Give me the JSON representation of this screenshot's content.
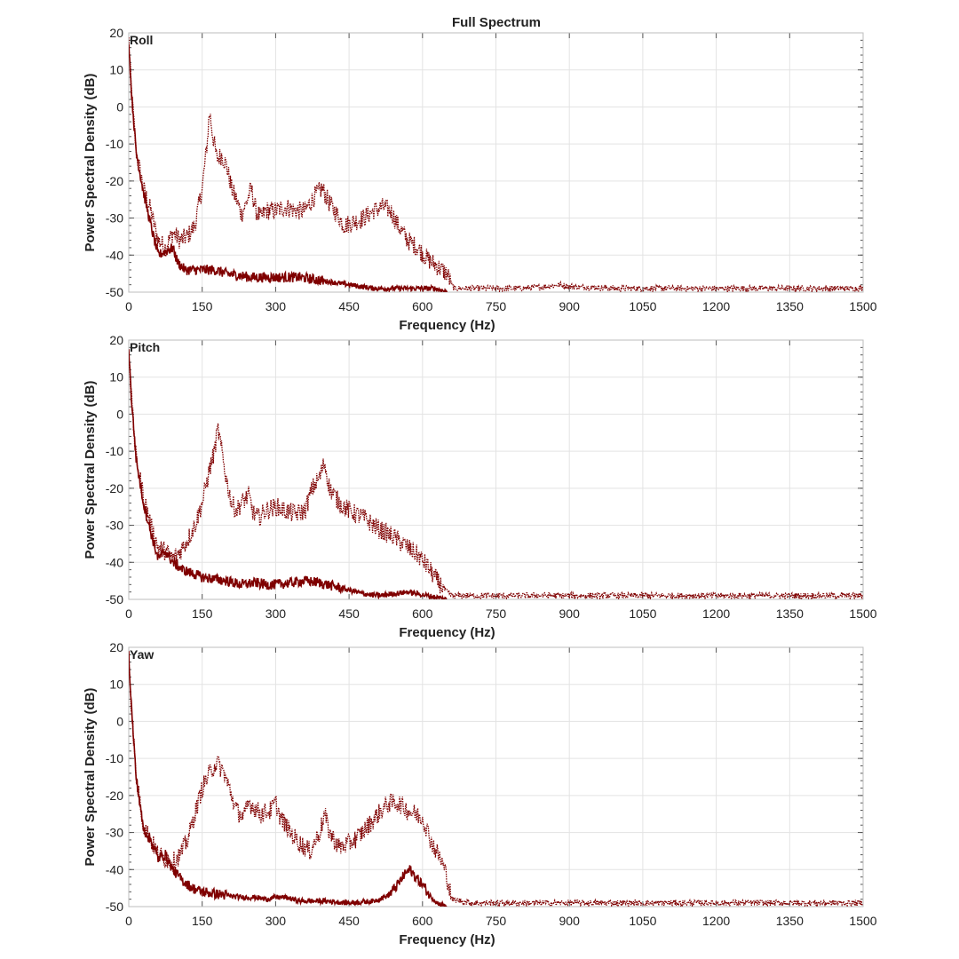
{
  "figure": {
    "title": "Full Spectrum"
  },
  "style": {
    "line_color": "#7f0000",
    "grid": true
  },
  "chart_data": [
    {
      "type": "line",
      "panel_label": "Roll",
      "xlabel": "Frequency (Hz)",
      "ylabel": "Power Spectral Density (dB)",
      "xlim": [
        0,
        1500
      ],
      "ylim": [
        -50,
        20
      ],
      "xticks": [
        "0",
        "150",
        "300",
        "450",
        "600",
        "750",
        "900",
        "1050",
        "1200",
        "1350",
        "1500"
      ],
      "yticks": [
        "20",
        "10",
        "0",
        "-10",
        "-20",
        "-30",
        "-40",
        "-50"
      ],
      "series": [
        {
          "style": "dotted",
          "x": [
            0,
            5,
            15,
            30,
            45,
            60,
            75,
            90,
            105,
            120,
            135,
            150,
            160,
            165,
            172,
            180,
            190,
            200,
            210,
            220,
            230,
            240,
            250,
            260,
            270,
            280,
            300,
            320,
            340,
            360,
            380,
            395,
            410,
            425,
            440,
            460,
            480,
            500,
            520,
            535,
            550,
            570,
            590,
            610,
            630,
            650,
            660,
            665,
            700,
            800,
            850,
            880,
            900,
            1000,
            1100,
            1200,
            1300,
            1400,
            1500
          ],
          "y": [
            18,
            5,
            -12,
            -22,
            -28,
            -36,
            -38,
            -34,
            -36,
            -35,
            -32,
            -22,
            -10,
            -1,
            -8,
            -14,
            -13,
            -16,
            -22,
            -25,
            -29,
            -26,
            -22,
            -28,
            -30,
            -28,
            -28,
            -27,
            -28,
            -28,
            -24,
            -22,
            -26,
            -29,
            -32,
            -31,
            -30,
            -28,
            -27,
            -28,
            -32,
            -36,
            -38,
            -41,
            -43,
            -45,
            -48,
            -49,
            -49,
            -49,
            -48.5,
            -48,
            -48.5,
            -49,
            -49,
            -49,
            -49,
            -49,
            -49
          ]
        },
        {
          "style": "solid",
          "x": [
            0,
            5,
            15,
            30,
            45,
            60,
            75,
            90,
            100,
            115,
            130,
            150,
            175,
            200,
            250,
            300,
            350,
            400,
            450,
            500,
            550,
            600,
            625,
            640,
            650
          ],
          "y": [
            18,
            5,
            -12,
            -23,
            -32,
            -40,
            -39,
            -38,
            -42,
            -44,
            -44,
            -44,
            -44,
            -45,
            -46,
            -46,
            -46,
            -47,
            -48,
            -49,
            -49,
            -49,
            -49,
            -49.5,
            -50
          ]
        }
      ]
    },
    {
      "type": "line",
      "panel_label": "Pitch",
      "xlabel": "Frequency (Hz)",
      "ylabel": "Power Spectral Density (dB)",
      "xlim": [
        0,
        1500
      ],
      "ylim": [
        -50,
        20
      ],
      "xticks": [
        "0",
        "150",
        "300",
        "450",
        "600",
        "750",
        "900",
        "1050",
        "1200",
        "1350",
        "1500"
      ],
      "yticks": [
        "20",
        "10",
        "0",
        "-10",
        "-20",
        "-30",
        "-40",
        "-50"
      ],
      "series": [
        {
          "style": "dotted",
          "x": [
            0,
            5,
            15,
            30,
            45,
            60,
            75,
            90,
            105,
            120,
            135,
            150,
            165,
            175,
            182,
            190,
            200,
            210,
            220,
            230,
            245,
            255,
            265,
            280,
            300,
            320,
            340,
            360,
            375,
            390,
            400,
            410,
            430,
            450,
            480,
            510,
            540,
            570,
            590,
            610,
            630,
            650,
            660,
            700,
            800,
            900,
            1000,
            1100,
            1200,
            1300,
            1400,
            1500
          ],
          "y": [
            18,
            5,
            -12,
            -22,
            -30,
            -36,
            -37,
            -39,
            -37,
            -34,
            -30,
            -24,
            -15,
            -10,
            -4,
            -10,
            -18,
            -24,
            -26,
            -24,
            -22,
            -27,
            -28,
            -26,
            -25,
            -26,
            -27,
            -26,
            -20,
            -17,
            -13,
            -20,
            -24,
            -26,
            -28,
            -31,
            -33,
            -36,
            -38,
            -41,
            -45,
            -48,
            -49,
            -49,
            -49,
            -49,
            -49,
            -49,
            -49,
            -49,
            -49,
            -49
          ]
        },
        {
          "style": "solid",
          "x": [
            0,
            5,
            15,
            30,
            45,
            60,
            75,
            90,
            110,
            130,
            150,
            175,
            200,
            230,
            260,
            280,
            300,
            330,
            360,
            390,
            420,
            450,
            480,
            510,
            540,
            570,
            590,
            610,
            630,
            650
          ],
          "y": [
            18,
            5,
            -12,
            -24,
            -32,
            -39,
            -37,
            -40,
            -42,
            -43,
            -44,
            -44.5,
            -45,
            -46,
            -45.5,
            -46,
            -46,
            -45.5,
            -45,
            -45.5,
            -46.5,
            -47.5,
            -48.5,
            -49,
            -48.5,
            -48,
            -48.5,
            -49,
            -49.5,
            -50
          ]
        }
      ]
    },
    {
      "type": "line",
      "panel_label": "Yaw",
      "xlabel": "Frequency (Hz)",
      "ylabel": "Power Spectral Density (dB)",
      "xlim": [
        0,
        1500
      ],
      "ylim": [
        -50,
        20
      ],
      "xticks": [
        "0",
        "150",
        "300",
        "450",
        "600",
        "750",
        "900",
        "1050",
        "1200",
        "1350",
        "1500"
      ],
      "yticks": [
        "20",
        "10",
        "0",
        "-10",
        "-20",
        "-30",
        "-40",
        "-50"
      ],
      "series": [
        {
          "style": "dotted",
          "x": [
            0,
            5,
            15,
            30,
            45,
            60,
            75,
            90,
            105,
            120,
            135,
            150,
            165,
            180,
            195,
            210,
            220,
            235,
            245,
            255,
            270,
            290,
            300,
            310,
            330,
            350,
            370,
            390,
            400,
            410,
            430,
            450,
            470,
            490,
            510,
            530,
            550,
            570,
            585,
            600,
            620,
            640,
            650,
            660,
            700,
            800,
            900,
            1000,
            1100,
            1200,
            1300,
            1400,
            1500
          ],
          "y": [
            18,
            5,
            -15,
            -28,
            -32,
            -36,
            -37,
            -38,
            -36,
            -32,
            -25,
            -18,
            -14,
            -11,
            -14,
            -20,
            -24,
            -26,
            -22,
            -23,
            -25,
            -24,
            -22,
            -26,
            -30,
            -33,
            -35,
            -30,
            -25,
            -30,
            -34,
            -33,
            -31,
            -28,
            -25,
            -22,
            -22,
            -24,
            -25,
            -26,
            -33,
            -38,
            -42,
            -48,
            -49,
            -49,
            -49,
            -49,
            -49,
            -49,
            -49,
            -49,
            -49
          ]
        },
        {
          "style": "solid",
          "x": [
            0,
            5,
            15,
            30,
            45,
            60,
            75,
            90,
            110,
            130,
            150,
            175,
            200,
            230,
            260,
            280,
            300,
            320,
            350,
            400,
            450,
            500,
            530,
            550,
            565,
            575,
            585,
            600,
            615,
            630,
            650
          ],
          "y": [
            18,
            5,
            -15,
            -29,
            -32,
            -37,
            -36,
            -40,
            -43,
            -45,
            -46,
            -46.5,
            -47,
            -47.5,
            -47.5,
            -48,
            -47.5,
            -47.5,
            -48.5,
            -48.5,
            -49,
            -48.5,
            -47,
            -44,
            -41,
            -40,
            -42,
            -44,
            -47,
            -49,
            -50
          ]
        }
      ]
    }
  ]
}
